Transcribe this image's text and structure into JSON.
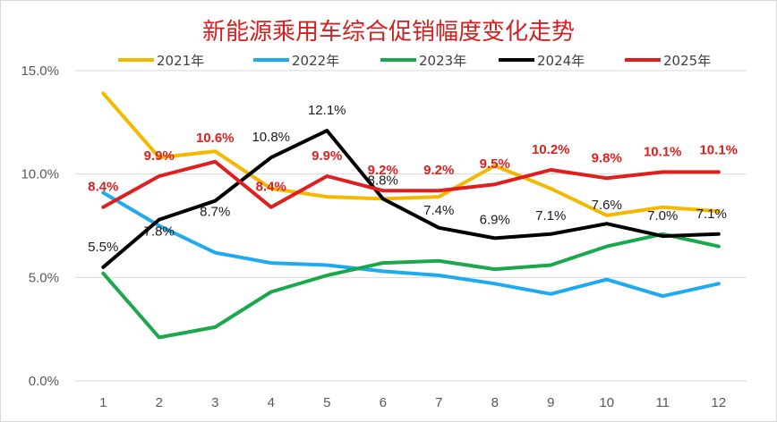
{
  "chart_data": {
    "type": "line",
    "title": "新能源乘用车综合促销幅度变化走势",
    "x": [
      "1",
      "2",
      "3",
      "4",
      "5",
      "6",
      "7",
      "8",
      "9",
      "10",
      "11",
      "12"
    ],
    "ylim": [
      0,
      15
    ],
    "yticks": [
      "0.0%",
      "5.0%",
      "10.0%",
      "15.0%"
    ],
    "grid": true,
    "legend_position": "top",
    "series": [
      {
        "name": "2021年",
        "color": "#f5b800",
        "values": [
          13.9,
          10.8,
          11.1,
          9.3,
          8.9,
          8.8,
          8.9,
          10.4,
          9.3,
          8.0,
          8.4,
          8.2
        ]
      },
      {
        "name": "2022年",
        "color": "#1eaaf0",
        "values": [
          9.1,
          7.5,
          6.2,
          5.7,
          5.6,
          5.3,
          5.1,
          4.7,
          4.2,
          4.9,
          4.1,
          4.7
        ]
      },
      {
        "name": "2023年",
        "color": "#1aa84c",
        "values": [
          5.2,
          2.1,
          2.6,
          4.3,
          5.1,
          5.7,
          5.8,
          5.4,
          5.6,
          6.5,
          7.1,
          6.5
        ]
      },
      {
        "name": "2024年",
        "color": "#000000",
        "values": [
          5.5,
          7.8,
          8.7,
          10.8,
          12.1,
          8.8,
          7.4,
          6.9,
          7.1,
          7.6,
          7.0,
          7.1
        ]
      },
      {
        "name": "2025年",
        "color": "#e01e1e",
        "values": [
          8.4,
          9.9,
          10.6,
          8.4,
          9.9,
          9.2,
          9.2,
          9.5,
          10.2,
          9.8,
          10.1,
          10.1
        ]
      }
    ],
    "data_labels_2024": [
      "5.5%",
      "7.8%",
      "8.7%",
      "10.8%",
      "12.1%",
      "8.8%",
      "7.4%",
      "6.9%",
      "7.1%",
      "7.6%",
      "7.0%",
      "7.1%"
    ],
    "data_labels_2025": [
      "8.4%",
      "9.9%",
      "10.6%",
      "8.4%",
      "9.9%",
      "9.2%",
      "9.2%",
      "9.5%",
      "10.2%",
      "9.8%",
      "10.1%",
      "10.1%"
    ]
  }
}
